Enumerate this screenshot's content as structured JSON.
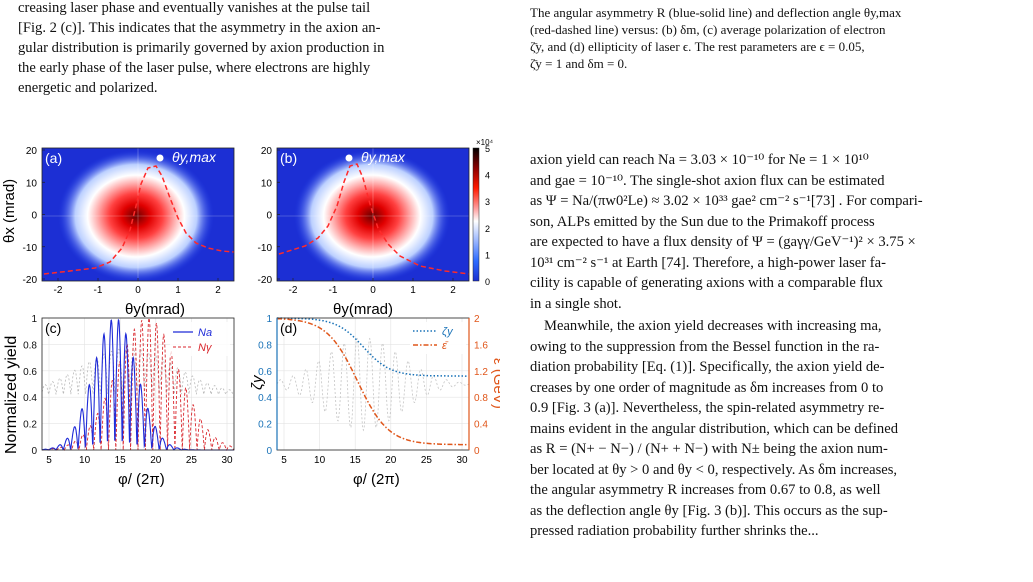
{
  "left_text": {
    "line1": "creasing laser phase and eventually vanishes at the pulse tail",
    "line2": "[Fig. 2 (c)]. This indicates that the asymmetry in the axion an-",
    "line3": "gular distribution is primarily governed by axion production in",
    "line4": "the early phase of the laser pulse, where electrons are highly",
    "line5": "energetic and polarized."
  },
  "caption": {
    "line1": "The angular asymmetry R (blue-solid line) and deflection angle θy,max",
    "line2": "(red-dashed line) versus: (b) δm, (c) average polarization of electron",
    "line3": "ζ̄y, and (d) ellipticity of laser ϵ. The rest parameters are ϵ = 0.05,",
    "line4": "ζ̄y = 1 and δm = 0."
  },
  "right_text": {
    "p1": [
      "axion yield can reach Na = 3.03 × 10⁻¹⁰ for Ne = 1 × 10¹⁰",
      "and gae = 10⁻¹⁰. The single-shot axion flux can be estimated",
      "as Ψ = Na/(πw0²Le) ≈ 3.02 × 10³³ gae² cm⁻² s⁻¹[73] . For compari-",
      "son, ALPs emitted by the Sun due to the Primakoff process",
      "are expected to have a flux density of Ψ = (gaγγ/GeV⁻¹)² × 3.75 ×",
      "10³¹ cm⁻² s⁻¹ at Earth [74]. Therefore, a high-power laser fa-",
      "cility is capable of generating axions with a comparable flux",
      "in a single shot."
    ],
    "p2": [
      "Meanwhile, the axion yield decreases with increasing ma,",
      "owing to the suppression from the Bessel function in the ra-",
      "diation probability [Eq. (1)]. Specifically, the axion yield de-",
      "creases by one order of magnitude as δm increases from 0 to",
      "0.9 [Fig. 3 (a)]. Nevertheless, the spin-related asymmetry re-",
      "mains evident in the angular distribution, which can be defined",
      "as R = (N+ − N−) / (N+ + N−) with N± being the axion num-",
      "ber located at θy > 0 and θy < 0, respectively. As δm increases,",
      "the angular asymmetry R increases from 0.67 to 0.8, as well",
      "as the deflection angle θy [Fig. 3 (b)]. This occurs as the sup-",
      "pressed radiation probability further shrinks the..."
    ]
  },
  "figure": {
    "panel_a": {
      "label": "(a)",
      "marker": "θy,max",
      "ylabel": "θx (mrad)",
      "xlabel": "θy(mrad)",
      "xticks": [
        "-2",
        "-1",
        "0",
        "1",
        "2"
      ],
      "yticks": [
        "20",
        "10",
        "0",
        "-10",
        "-20"
      ]
    },
    "panel_b": {
      "label": "(b)",
      "marker": "θy,max",
      "xlabel": "θy(mrad)",
      "xticks": [
        "-2",
        "-1",
        "0",
        "1",
        "2"
      ],
      "yticks": [
        "20",
        "10",
        "0",
        "-10",
        "-20"
      ]
    },
    "colorbar": {
      "exponent": "×10⁴",
      "ticks": [
        "5",
        "4",
        "3",
        "2",
        "1",
        "0"
      ],
      "colors": [
        "#000000",
        "#7a0000",
        "#ff1a00",
        "#ff9a9a",
        "#ffffff",
        "#9ab6ff",
        "#2d6bff",
        "#1a2fd0"
      ]
    },
    "panel_c": {
      "label": "(c)",
      "ylabel": "Normalized yield",
      "xlabel": "φ/ (2π)",
      "xticks": [
        "5",
        "10",
        "15",
        "20",
        "25",
        "30"
      ],
      "yticks": [
        "1",
        "0.8",
        "0.6",
        "0.4",
        "0.2",
        "0"
      ],
      "legend": [
        "Na",
        "Nγ"
      ],
      "color_a": "#1f2bd8",
      "color_g": "#d9262c"
    },
    "panel_d": {
      "label": "(d)",
      "ylabel_left": "ζy",
      "ylabel_right": "ε̄ (GeV)",
      "xlabel": "φ/ (2π)",
      "xticks": [
        "5",
        "10",
        "15",
        "20",
        "25",
        "30"
      ],
      "yticks_left": [
        "1",
        "0.8",
        "0.6",
        "0.4",
        "0.2",
        "0"
      ],
      "yticks_right": [
        "2",
        "1.6",
        "1.2",
        "0.8",
        "0.4",
        "0"
      ],
      "legend": [
        "ζy",
        "ε̄"
      ],
      "color_left": "#1a73b8",
      "color_right": "#e0561a"
    }
  }
}
